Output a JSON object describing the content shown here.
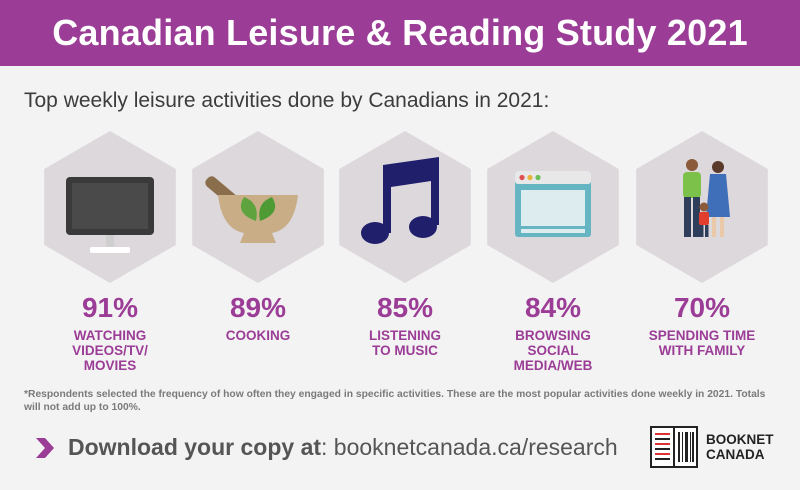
{
  "header": {
    "title": "Canadian Leisure & Reading Study 2021"
  },
  "subtitle": "Top weekly leisure activities done by Canadians in 2021:",
  "chart_data": {
    "type": "bar",
    "categories": [
      "WATCHING VIDEOS/TV/ MOVIES",
      "COOKING",
      "LISTENING TO MUSIC",
      "BROWSING SOCIAL MEDIA/WEB",
      "SPENDING TIME WITH FAMILY"
    ],
    "values": [
      91,
      89,
      85,
      84,
      70
    ],
    "value_labels": [
      "91%",
      "89%",
      "85%",
      "84%",
      "70%"
    ],
    "label_lines": [
      [
        "WATCHING",
        "VIDEOS/TV/",
        "MOVIES"
      ],
      [
        "COOKING"
      ],
      [
        "LISTENING",
        "TO MUSIC"
      ],
      [
        "BROWSING",
        "SOCIAL",
        "MEDIA/WEB"
      ],
      [
        "SPENDING TIME",
        "WITH FAMILY"
      ]
    ],
    "icons": [
      "tv-icon",
      "mortar-pestle-icon",
      "music-note-icon",
      "browser-window-icon",
      "family-icon"
    ],
    "unit": "%"
  },
  "footnote": "*Respondents selected the frequency of how often they engaged in specific activities. These are the most popular activities done weekly in 2021. Totals will not add up to 100%.",
  "cta": {
    "label": "Download your copy at",
    "separator": ":",
    "url": " booknetcanada.ca/research"
  },
  "logo": {
    "line1": "BOOKNET",
    "line2": "CANADA"
  },
  "colors": {
    "accent": "#9b3d96",
    "hexagon": "#dcd8dc",
    "text": "#3c3c3c"
  }
}
